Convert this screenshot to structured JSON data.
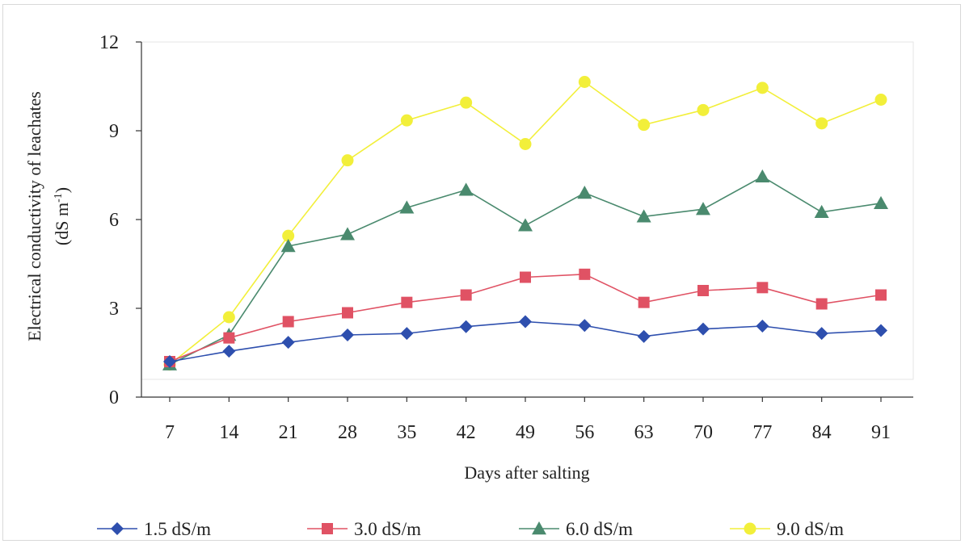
{
  "chart_data": {
    "type": "line",
    "title": "",
    "xlabel": "Days after salting",
    "ylabel_line1": "Electrical conductivity of leachates",
    "ylabel_line2_prefix": "(dS m",
    "ylabel_line2_sup": "-1",
    "ylabel_line2_suffix": ")",
    "x": [
      "7",
      "14",
      "21",
      "28",
      "35",
      "42",
      "49",
      "56",
      "63",
      "70",
      "77",
      "84",
      "91"
    ],
    "yticks": [
      "0",
      "3",
      "6",
      "9",
      "12"
    ],
    "ylim": [
      0,
      12
    ],
    "grid": false,
    "legend_position": "bottom",
    "series": [
      {
        "name": "1.5 dS/m",
        "marker": "diamond",
        "color": "#2e4fae",
        "values": [
          1.2,
          1.55,
          1.85,
          2.1,
          2.15,
          2.38,
          2.55,
          2.42,
          2.05,
          2.3,
          2.4,
          2.15,
          2.25
        ]
      },
      {
        "name": "3.0 dS/m",
        "marker": "square",
        "color": "#e05264",
        "values": [
          1.2,
          2.0,
          2.55,
          2.85,
          3.2,
          3.45,
          4.05,
          4.15,
          3.2,
          3.6,
          3.7,
          3.15,
          3.45
        ]
      },
      {
        "name": "6.0 dS/m",
        "marker": "triangle",
        "color": "#4a8a6e",
        "values": [
          1.1,
          2.1,
          5.1,
          5.5,
          6.4,
          7.0,
          5.8,
          6.9,
          6.1,
          6.35,
          7.45,
          6.25,
          6.55
        ]
      },
      {
        "name": "9.0 dS/m",
        "marker": "circle",
        "color": "#f2ef3a",
        "values": [
          1.1,
          2.7,
          5.45,
          8.0,
          9.35,
          9.95,
          8.55,
          10.65,
          9.2,
          9.7,
          10.45,
          9.25,
          10.05
        ]
      }
    ]
  }
}
